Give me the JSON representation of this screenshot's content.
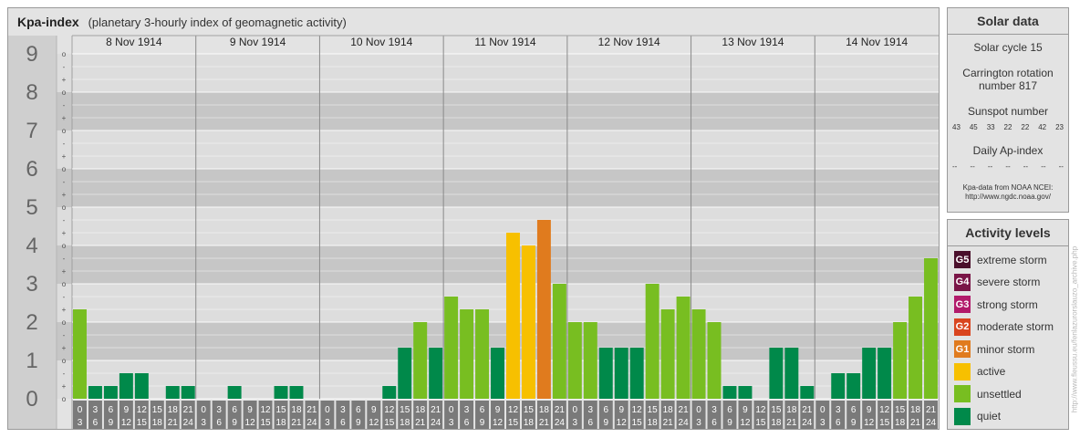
{
  "header": {
    "title": "Kpa-index",
    "subtitle": "(planetary 3-hourly index of geomagnetic activity)"
  },
  "chart_data": {
    "type": "bar",
    "title": "Kpa-index",
    "subtitle": "(planetary 3-hourly index of geomagnetic activity)",
    "ylim": [
      0,
      9
    ],
    "y_ticks": [
      "0",
      "1",
      "2",
      "3",
      "4",
      "5",
      "6",
      "7",
      "8",
      "9"
    ],
    "sub_ticks": [
      "o",
      "+",
      "-"
    ],
    "days": [
      "8 Nov 1914",
      "9 Nov 1914",
      "10 Nov 1914",
      "11 Nov 1914",
      "12 Nov 1914",
      "13 Nov 1914",
      "14 Nov 1914"
    ],
    "interval_start_labels": [
      "0",
      "3",
      "6",
      "9",
      "12",
      "15",
      "18",
      "21"
    ],
    "interval_end_labels": [
      "3",
      "6",
      "9",
      "12",
      "15",
      "18",
      "21",
      "24"
    ],
    "values": [
      2.333,
      0.333,
      0.333,
      0.667,
      0.667,
      0,
      0.333,
      0.333,
      0,
      0,
      0.333,
      0,
      0,
      0.333,
      0.333,
      0,
      0,
      0,
      0,
      0,
      0.333,
      1.333,
      2,
      1.333,
      2.667,
      2.333,
      2.333,
      1.333,
      4.333,
      4,
      4.667,
      3,
      2,
      2,
      1.333,
      1.333,
      1.333,
      3,
      2.333,
      2.667,
      2.333,
      2,
      0.333,
      0.333,
      0,
      1.333,
      1.333,
      0.333,
      0,
      0.667,
      0.667,
      1.333,
      1.333,
      2,
      2.667,
      3.667
    ],
    "grid": true
  },
  "solar": {
    "title": "Solar data",
    "cycle": "Solar cycle 15",
    "carrington_line1": "Carrington rotation",
    "carrington_line2": "number 817",
    "sunspot_title": "Sunspot number",
    "sunspot_values": [
      "43",
      "45",
      "33",
      "22",
      "22",
      "42",
      "23"
    ],
    "ap_title": "Daily Ap-index",
    "ap_values": [
      "--",
      "--",
      "--",
      "--",
      "--",
      "--",
      "--"
    ],
    "source_line1": "Kpa-data from NOAA NCEI:",
    "source_line2": "http://www.ngdc.noaa.gov/"
  },
  "levels": {
    "title": "Activity levels",
    "items": [
      {
        "badge": "G5",
        "label": "extreme storm",
        "color": "#4a0f2b"
      },
      {
        "badge": "G4",
        "label": "severe storm",
        "color": "#7a1547"
      },
      {
        "badge": "G3",
        "label": "strong storm",
        "color": "#b21a6a"
      },
      {
        "badge": "G2",
        "label": "moderate storm",
        "color": "#d9451f"
      },
      {
        "badge": "G1",
        "label": "minor storm",
        "color": "#e07b1e"
      },
      {
        "badge": "",
        "label": "active",
        "color": "#f7c000"
      },
      {
        "badge": "",
        "label": "unsettled",
        "color": "#78be21"
      },
      {
        "badge": "",
        "label": "quiet",
        "color": "#00894a"
      }
    ]
  },
  "colors": {
    "quiet": "#00894a",
    "unsettled": "#78be21",
    "active": "#f7c000",
    "minor_storm": "#e07b1e",
    "moderate_storm": "#d9451f",
    "band_dark": "#c6c6c6",
    "band_light": "#dddddd",
    "label_column": "#cfcfcf",
    "time_cell": "#7a7a7a"
  },
  "watermark": "http://www.fleussu.eu/fenlazurorslauzo_archive.php"
}
